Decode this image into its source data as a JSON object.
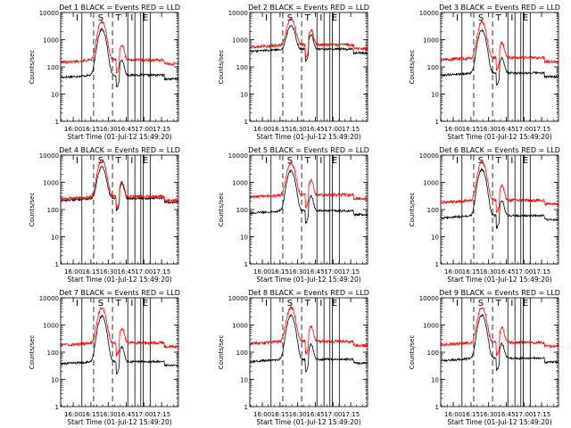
{
  "chart_data": {
    "type": "line",
    "grid": false,
    "legend": "in title",
    "colors": {
      "events": "#000000",
      "lld": "#ff0000",
      "axis": "#000000",
      "background": "#ffffff"
    },
    "common": {
      "title_template": "Det {n}  BLACK = Events  RED = LLD",
      "ylabel": "Counts/sec",
      "xlabel": "Start Time (01-Jul-12 15:49:20)",
      "yscale": "log",
      "ylim": [
        1,
        10000
      ],
      "yticks": [
        "1",
        "10",
        "100",
        "1000",
        "10000"
      ],
      "xlim_minutes": [
        0,
        100
      ],
      "xticks": [
        "16:00",
        "16:15",
        "16:30",
        "16:45",
        "17:00",
        "17:15"
      ],
      "xtick_minutes": [
        10.67,
        25.67,
        40.67,
        55.67,
        70.67,
        85.67
      ],
      "interval_markers": [
        "I",
        "S",
        "T",
        "I",
        "E"
      ],
      "vertical_dotted_minutes": [
        0,
        99
      ],
      "vertical_solid_minutes": [
        18,
        57,
        63,
        68,
        70,
        76
      ],
      "vertical_dashed_minutes": [
        28,
        44
      ]
    },
    "panels": [
      {
        "detector": "1",
        "title": "Det 1  BLACK = Events  RED = LLD",
        "events_baseline": 50,
        "lld_baseline": 180,
        "flare_peak": 4500,
        "series": [
          {
            "name": "BLACK = Events",
            "color": "#000000"
          },
          {
            "name": "RED = LLD",
            "color": "#ff0000"
          }
        ]
      },
      {
        "detector": "2",
        "title": "Det 2  BLACK = Events  RED = LLD",
        "events_baseline": 450,
        "lld_baseline": 650,
        "flare_peak": 5500,
        "series": [
          {
            "name": "BLACK = Events",
            "color": "#000000"
          },
          {
            "name": "RED = LLD",
            "color": "#ff0000"
          }
        ]
      },
      {
        "detector": "3",
        "title": "Det 3  BLACK = Events  RED = LLD",
        "events_baseline": 60,
        "lld_baseline": 220,
        "flare_peak": 4200,
        "series": [
          {
            "name": "BLACK = Events",
            "color": "#000000"
          },
          {
            "name": "RED = LLD",
            "color": "#ff0000"
          }
        ]
      },
      {
        "detector": "4",
        "title": "Det 4  BLACK = Events  RED = LLD",
        "events_baseline": 260,
        "lld_baseline": 300,
        "flare_peak": 6500,
        "series": [
          {
            "name": "BLACK = Events",
            "color": "#000000"
          },
          {
            "name": "RED = LLD",
            "color": "#ff0000"
          }
        ]
      },
      {
        "detector": "5",
        "title": "Det 5  BLACK = Events  RED = LLD",
        "events_baseline": 90,
        "lld_baseline": 350,
        "flare_peak": 5000,
        "series": [
          {
            "name": "BLACK = Events",
            "color": "#000000"
          },
          {
            "name": "RED = LLD",
            "color": "#ff0000"
          }
        ]
      },
      {
        "detector": "6",
        "title": "Det 6  BLACK = Events  RED = LLD",
        "events_baseline": 60,
        "lld_baseline": 220,
        "flare_peak": 5500,
        "series": [
          {
            "name": "BLACK = Events",
            "color": "#000000"
          },
          {
            "name": "RED = LLD",
            "color": "#ff0000"
          }
        ]
      },
      {
        "detector": "7",
        "title": "Det 7  BLACK = Events  RED = LLD",
        "events_baseline": 45,
        "lld_baseline": 220,
        "flare_peak": 4000,
        "series": [
          {
            "name": "BLACK = Events",
            "color": "#000000"
          },
          {
            "name": "RED = LLD",
            "color": "#ff0000"
          }
        ]
      },
      {
        "detector": "8",
        "title": "Det 8  BLACK = Events  RED = LLD",
        "events_baseline": 55,
        "lld_baseline": 250,
        "flare_peak": 4200,
        "series": [
          {
            "name": "BLACK = Events",
            "color": "#000000"
          },
          {
            "name": "RED = LLD",
            "color": "#ff0000"
          }
        ]
      },
      {
        "detector": "9",
        "title": "Det 9  BLACK = Events  RED = LLD",
        "events_baseline": 60,
        "lld_baseline": 230,
        "flare_peak": 4300,
        "series": [
          {
            "name": "BLACK = Events",
            "color": "#000000"
          },
          {
            "name": "RED = LLD",
            "color": "#ff0000"
          }
        ]
      }
    ]
  }
}
